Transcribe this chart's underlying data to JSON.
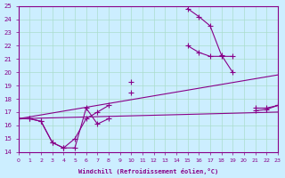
{
  "xlabel": "Windchill (Refroidissement éolien,°C)",
  "background_color": "#cceeff",
  "grid_color": "#aaddcc",
  "line_color": "#880088",
  "xlim": [
    0,
    23
  ],
  "ylim": [
    14,
    25
  ],
  "xticks": [
    0,
    1,
    2,
    3,
    4,
    5,
    6,
    7,
    8,
    9,
    10,
    11,
    12,
    13,
    14,
    15,
    16,
    17,
    18,
    19,
    20,
    21,
    22,
    23
  ],
  "yticks": [
    14,
    15,
    16,
    17,
    18,
    19,
    20,
    21,
    22,
    23,
    24,
    25
  ],
  "series": [
    {
      "x": [
        0,
        1,
        2,
        3,
        4,
        5,
        6,
        7,
        8,
        9,
        10,
        11,
        12,
        13,
        14,
        15,
        16,
        17,
        18,
        19,
        20,
        21,
        22,
        23
      ],
      "y": [
        16.5,
        16.5,
        16.3,
        14.7,
        14.3,
        14.3,
        17.3,
        16.1,
        16.5,
        null,
        19.3,
        null,
        null,
        null,
        null,
        24.8,
        24.2,
        23.5,
        21.3,
        20.0,
        null,
        17.1,
        17.2,
        17.5
      ]
    },
    {
      "x": [
        0,
        1,
        2,
        3,
        4,
        5,
        6,
        7,
        8,
        9,
        10,
        11,
        12,
        13,
        14,
        15,
        16,
        17,
        18,
        19,
        20,
        21,
        22,
        23
      ],
      "y": [
        16.5,
        16.5,
        16.3,
        14.7,
        14.3,
        15.0,
        16.5,
        17.0,
        17.5,
        null,
        18.5,
        null,
        null,
        null,
        null,
        22.0,
        21.5,
        21.2,
        21.2,
        21.2,
        null,
        17.3,
        17.3,
        17.5
      ]
    },
    {
      "x": [
        0,
        23
      ],
      "y": [
        16.5,
        17.0
      ]
    },
    {
      "x": [
        0,
        23
      ],
      "y": [
        16.5,
        19.8
      ]
    }
  ]
}
